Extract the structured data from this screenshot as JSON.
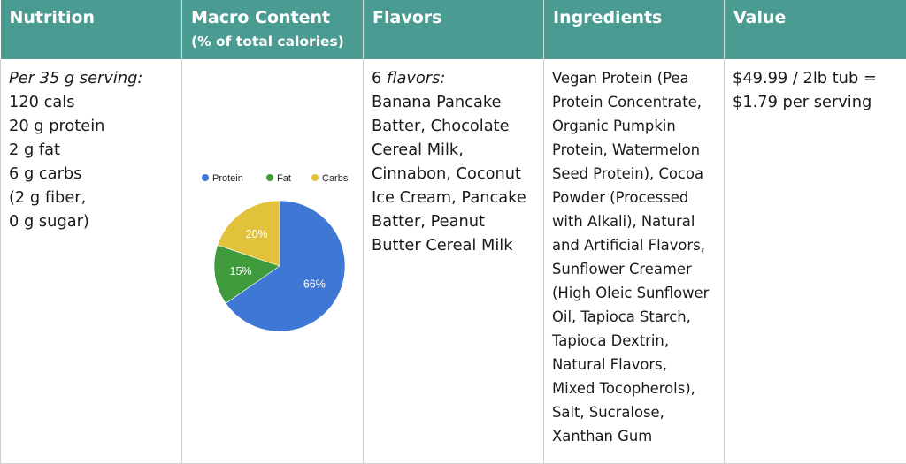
{
  "headers": [
    {
      "title": "Nutrition",
      "subtitle": ""
    },
    {
      "title": "Macro Content",
      "subtitle": "(% of total calories)"
    },
    {
      "title": "Flavors",
      "subtitle": ""
    },
    {
      "title": "Ingredients",
      "subtitle": ""
    },
    {
      "title": "Value",
      "subtitle": ""
    }
  ],
  "nutrition": {
    "serving": "Per 35 g serving:",
    "lines": [
      "120 cals",
      "20 g protein",
      "2 g fat",
      "6 g carbs",
      "(2 g fiber,",
      "0 g sugar)"
    ]
  },
  "flavors": {
    "count_num": "6",
    "count_word": "flavors:",
    "lines": [
      "Banana Pancake",
      "Batter, Chocolate",
      "Cereal Milk,",
      "Cinnabon, Coconut",
      "Ice Cream, Pancake",
      "Batter, Peanut",
      "Butter Cereal Milk"
    ]
  },
  "ingredients": {
    "lines": [
      "Vegan Protein (Pea",
      "Protein Concentrate,",
      "Organic Pumpkin",
      "Protein, Watermelon",
      "Seed Protein), Cocoa",
      "Powder (Processed",
      "with Alkali), Natural",
      "and Artificial Flavors,",
      "Sunflower Creamer",
      "(High Oleic Sunflower",
      "Oil, Tapioca Starch,",
      "Tapioca Dextrin,",
      "Natural Flavors,",
      "Mixed Tocopherols),",
      "Salt, Sucralose,",
      "Xanthan Gum"
    ]
  },
  "value": {
    "lines": [
      "$49.99 / 2lb tub =",
      "$1.79 per serving"
    ]
  },
  "chart_data": {
    "type": "pie",
    "legend_position": "top",
    "series": [
      {
        "name": "Protein",
        "value": 66,
        "label": "66%",
        "color": "#3f78d4"
      },
      {
        "name": "Fat",
        "value": 15,
        "label": "15%",
        "color": "#3f9a3c"
      },
      {
        "name": "Carbs",
        "value": 20,
        "label": "20%",
        "color": "#e2c23a"
      }
    ]
  }
}
